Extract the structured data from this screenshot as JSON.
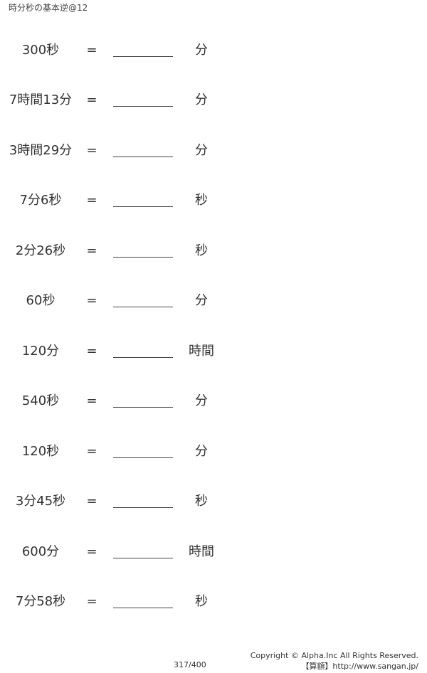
{
  "header": {
    "title": "時分秒の基本逆@12"
  },
  "problems": [
    {
      "question": "300秒",
      "equals": "=",
      "unit": "分"
    },
    {
      "question": "7時間13分",
      "equals": "=",
      "unit": "分"
    },
    {
      "question": "3時間29分",
      "equals": "=",
      "unit": "分"
    },
    {
      "question": "7分6秒",
      "equals": "=",
      "unit": "秒"
    },
    {
      "question": "2分26秒",
      "equals": "=",
      "unit": "秒"
    },
    {
      "question": "60秒",
      "equals": "=",
      "unit": "分"
    },
    {
      "question": "120分",
      "equals": "=",
      "unit": "時間"
    },
    {
      "question": "540秒",
      "equals": "=",
      "unit": "分"
    },
    {
      "question": "120秒",
      "equals": "=",
      "unit": "分"
    },
    {
      "question": "3分45秒",
      "equals": "=",
      "unit": "秒"
    },
    {
      "question": "600分",
      "equals": "=",
      "unit": "時間"
    },
    {
      "question": "7分58秒",
      "equals": "=",
      "unit": "秒"
    }
  ],
  "footer": {
    "page": "317/400",
    "copyright": "Copyright © Alpha.Inc All Rights Reserved.",
    "site": "【算額】http://www.sangan.jp/"
  }
}
